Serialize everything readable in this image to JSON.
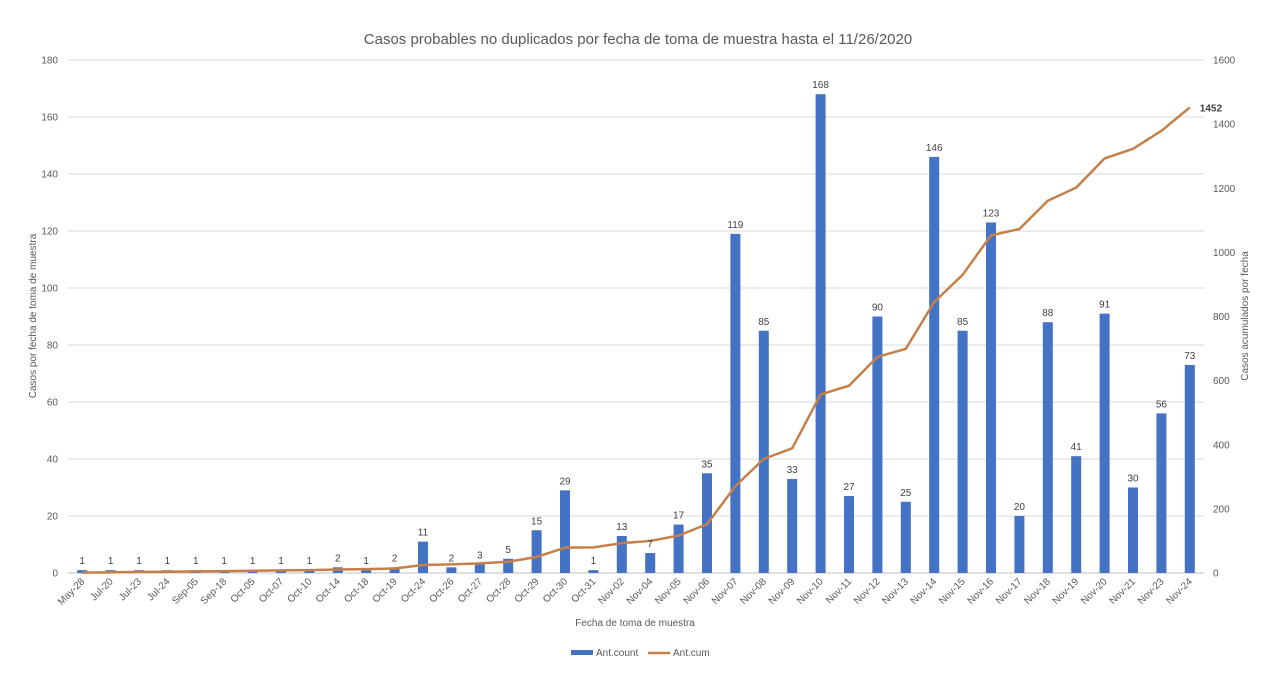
{
  "chart_data": {
    "type": "bar",
    "title": "Casos probables no duplicados por fecha de toma de muestra hasta el 11/26/2020",
    "xlabel": "Fecha de toma de muestra",
    "ylabel": "Casos por fecha de toma de muestra",
    "y2label": "Casos acumulados por fecha",
    "ylim": [
      0,
      180
    ],
    "y2lim": [
      0,
      1600
    ],
    "yticks": [
      "0",
      "20",
      "40",
      "60",
      "80",
      "100",
      "120",
      "140",
      "160",
      "180"
    ],
    "y2ticks": [
      "0",
      "200",
      "400",
      "600",
      "800",
      "1000",
      "1200",
      "1400",
      "1600"
    ],
    "grid": true,
    "legend_position": "bottom",
    "categories": [
      "May-28",
      "Jul-20",
      "Jul-23",
      "Jul-24",
      "Sep-05",
      "Sep-18",
      "Oct-05",
      "Oct-07",
      "Oct-10",
      "Oct-14",
      "Oct-18",
      "Oct-19",
      "Oct-24",
      "Oct-26",
      "Oct-27",
      "Oct-28",
      "Oct-29",
      "Oct-30",
      "Oct-31",
      "Nov-02",
      "Nov-04",
      "Nov-05",
      "Nov-06",
      "Nov-07",
      "Nov-08",
      "Nov-09",
      "Nov-10",
      "Nov-11",
      "Nov-12",
      "Nov-13",
      "Nov-14",
      "Nov-15",
      "Nov-16",
      "Nov-17",
      "Nov-18",
      "Nov-19",
      "Nov-20",
      "Nov-21",
      "Nov-23",
      "Nov-24"
    ],
    "series": [
      {
        "name": "Ant.count",
        "type": "bar",
        "color": "#4472C4",
        "axis": "left",
        "values": [
          1,
          1,
          1,
          1,
          1,
          1,
          1,
          1,
          1,
          2,
          1,
          2,
          11,
          2,
          3,
          5,
          15,
          29,
          1,
          13,
          7,
          17,
          35,
          119,
          85,
          33,
          168,
          27,
          90,
          25,
          146,
          85,
          123,
          20,
          88,
          41,
          91,
          30,
          56,
          73
        ],
        "labels": [
          "1",
          "1",
          "1",
          "1",
          "1",
          "1",
          "1",
          "1",
          "1",
          "2",
          "1",
          "2",
          "11",
          "2",
          "3",
          "5",
          "15",
          "29",
          "1",
          "13",
          "7",
          "17",
          "35",
          "119",
          "85",
          "33",
          "168",
          "27",
          "90",
          "25",
          "146",
          "85",
          "123",
          "20",
          "88",
          "41",
          "91",
          "30",
          "56",
          "73"
        ]
      },
      {
        "name": "Ant.cum",
        "type": "line",
        "color": "#C5804A",
        "axis": "right",
        "values": [
          1,
          2,
          3,
          4,
          5,
          6,
          7,
          8,
          9,
          11,
          12,
          14,
          25,
          27,
          30,
          35,
          50,
          79,
          80,
          93,
          100,
          117,
          152,
          271,
          356,
          389,
          557,
          584,
          674,
          699,
          845,
          930,
          1053,
          1073,
          1161,
          1202,
          1293,
          1323,
          1379,
          1452
        ],
        "end_label": "1452"
      }
    ]
  }
}
